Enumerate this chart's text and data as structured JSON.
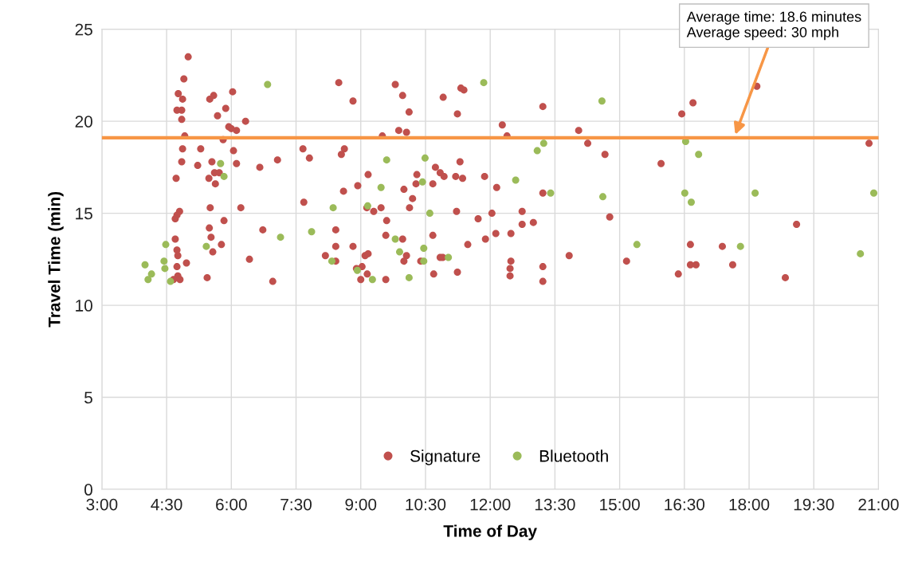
{
  "chart_data": {
    "type": "scatter",
    "xlabel": "Time of Day",
    "ylabel": "Travel Time (min)",
    "xlim": [
      3,
      21
    ],
    "ylim": [
      0,
      25
    ],
    "xticks": [
      {
        "value": 3,
        "label": "3:00"
      },
      {
        "value": 4.5,
        "label": "4:30"
      },
      {
        "value": 6,
        "label": "6:00"
      },
      {
        "value": 7.5,
        "label": "7:30"
      },
      {
        "value": 9,
        "label": "9:00"
      },
      {
        "value": 10.5,
        "label": "10:30"
      },
      {
        "value": 12,
        "label": "12:00"
      },
      {
        "value": 13.5,
        "label": "13:30"
      },
      {
        "value": 15,
        "label": "15:00"
      },
      {
        "value": 16.5,
        "label": "16:30"
      },
      {
        "value": 18,
        "label": "18:00"
      },
      {
        "value": 19.5,
        "label": "19:30"
      },
      {
        "value": 21,
        "label": "21:00"
      }
    ],
    "yticks": [
      0,
      5,
      10,
      15,
      20,
      25
    ],
    "grid": true,
    "legend": "bottom",
    "marker": "circle",
    "ref_lines": [
      {
        "axis": "y",
        "value": 19.1,
        "color": "#f79646"
      }
    ],
    "annotations": [
      "Average time: 18.6 minutes\nAverage speed: 30 mph"
    ],
    "series": [
      {
        "name": "Signature",
        "color": "#c0504d",
        "x": [
          5.0,
          4.9,
          4.77,
          4.87,
          4.74,
          4.85,
          4.85,
          4.92,
          4.87,
          4.85,
          4.72,
          4.8,
          4.74,
          4.7,
          4.7,
          4.74,
          4.76,
          4.74,
          4.96,
          4.76,
          4.81,
          4.66,
          5.29,
          5.22,
          5.55,
          5.5,
          5.59,
          5.68,
          5.87,
          6.03,
          5.94,
          6.0,
          6.12,
          6.33,
          5.81,
          6.05,
          6.12,
          5.61,
          5.72,
          5.63,
          5.48,
          6.22,
          5.51,
          5.49,
          5.83,
          5.53,
          5.77,
          5.57,
          5.44,
          6.42,
          6.66,
          7.07,
          6.73,
          6.96,
          7.66,
          7.81,
          7.68,
          8.18,
          8.42,
          8.42,
          8.42,
          8.49,
          8.55,
          8.62,
          8.6,
          8.82,
          8.82,
          8.93,
          9.17,
          9.14,
          9.03,
          9.0,
          9.1,
          9.17,
          8.9,
          9.15,
          9.3,
          9.47,
          9.58,
          9.6,
          9.5,
          9.8,
          9.88,
          9.97,
          10.06,
          10.12,
          10.0,
          9.97,
          10.06,
          10.0,
          10.3,
          10.28,
          10.2,
          10.13,
          10.39,
          9.58,
          10.67,
          10.69,
          10.67,
          10.73,
          10.84,
          10.93,
          10.91,
          10.84,
          10.9,
          11.2,
          11.24,
          11.32,
          11.39,
          11.3,
          11.36,
          11.22,
          11.24,
          11.48,
          11.72,
          11.87,
          11.89,
          12.04,
          12.13,
          12.15,
          12.28,
          12.39,
          12.48,
          12.46,
          12.46,
          12.48,
          12.74,
          12.74,
          13.0,
          13.22,
          13.22,
          13.22,
          13.22,
          13.83,
          14.05,
          14.26,
          14.66,
          14.77,
          15.16,
          15.96,
          16.36,
          16.44,
          16.64,
          16.64,
          16.77,
          16.7,
          17.38,
          17.62,
          18.18,
          18.84,
          19.1,
          20.78
        ],
        "values": [
          23.5,
          22.3,
          21.5,
          21.2,
          20.6,
          20.6,
          20.1,
          19.2,
          18.5,
          17.8,
          16.9,
          15.1,
          14.9,
          14.7,
          13.6,
          13.0,
          12.7,
          12.1,
          12.3,
          11.6,
          11.4,
          11.4,
          18.5,
          17.6,
          17.8,
          21.2,
          21.4,
          20.3,
          20.7,
          21.6,
          19.7,
          19.6,
          19.5,
          20.0,
          19.0,
          18.4,
          17.7,
          17.2,
          17.2,
          16.6,
          16.9,
          15.3,
          15.3,
          14.2,
          14.6,
          13.7,
          13.3,
          12.9,
          11.5,
          12.5,
          17.5,
          17.9,
          14.1,
          11.3,
          18.5,
          18.0,
          15.6,
          12.7,
          14.1,
          12.4,
          13.2,
          22.1,
          18.2,
          18.5,
          16.2,
          21.1,
          13.2,
          16.5,
          17.1,
          15.3,
          12.1,
          11.4,
          12.7,
          12.8,
          12.0,
          11.7,
          15.1,
          15.3,
          13.8,
          14.6,
          19.2,
          22.0,
          19.5,
          21.4,
          19.4,
          20.5,
          16.3,
          13.6,
          12.7,
          12.4,
          17.1,
          16.6,
          15.8,
          15.3,
          12.4,
          11.4,
          13.8,
          11.7,
          16.6,
          17.5,
          17.2,
          17.0,
          21.3,
          12.6,
          12.6,
          17.0,
          20.4,
          21.8,
          21.7,
          17.8,
          16.9,
          15.1,
          11.8,
          13.3,
          14.7,
          17.0,
          13.6,
          15.0,
          13.9,
          16.4,
          19.8,
          19.2,
          12.4,
          12.0,
          11.6,
          13.9,
          14.4,
          15.1,
          14.5,
          20.8,
          16.1,
          12.1,
          11.3,
          12.7,
          19.5,
          18.8,
          18.2,
          14.8,
          12.4,
          17.7,
          11.7,
          20.4,
          13.3,
          12.2,
          12.2,
          21.0,
          13.2,
          12.2,
          21.9,
          11.5,
          14.4,
          18.8
        ]
      },
      {
        "name": "Bluetooth",
        "color": "#9bbb59",
        "x": [
          4.0,
          4.07,
          4.15,
          4.44,
          4.46,
          4.48,
          4.59,
          5.42,
          5.75,
          5.83,
          6.84,
          7.14,
          7.86,
          8.36,
          8.33,
          8.92,
          9.16,
          9.27,
          9.47,
          9.6,
          9.8,
          9.9,
          10.12,
          10.49,
          10.43,
          10.6,
          10.46,
          10.46,
          11.03,
          11.85,
          12.59,
          13.09,
          13.24,
          13.4,
          14.59,
          14.61,
          15.4,
          16.51,
          16.53,
          16.66,
          16.83,
          17.8,
          18.14,
          20.58,
          20.89
        ],
        "values": [
          12.2,
          11.4,
          11.7,
          12.4,
          12.0,
          13.3,
          11.3,
          13.2,
          17.7,
          17.0,
          22.0,
          13.7,
          14.0,
          15.3,
          12.4,
          11.9,
          15.4,
          11.4,
          16.4,
          17.9,
          13.6,
          12.9,
          11.5,
          18.0,
          16.7,
          15.0,
          13.1,
          12.4,
          12.6,
          22.1,
          16.8,
          18.4,
          18.8,
          16.1,
          21.1,
          15.9,
          13.3,
          16.1,
          18.9,
          15.6,
          18.2,
          13.2,
          16.1,
          12.8,
          16.1
        ]
      }
    ]
  }
}
